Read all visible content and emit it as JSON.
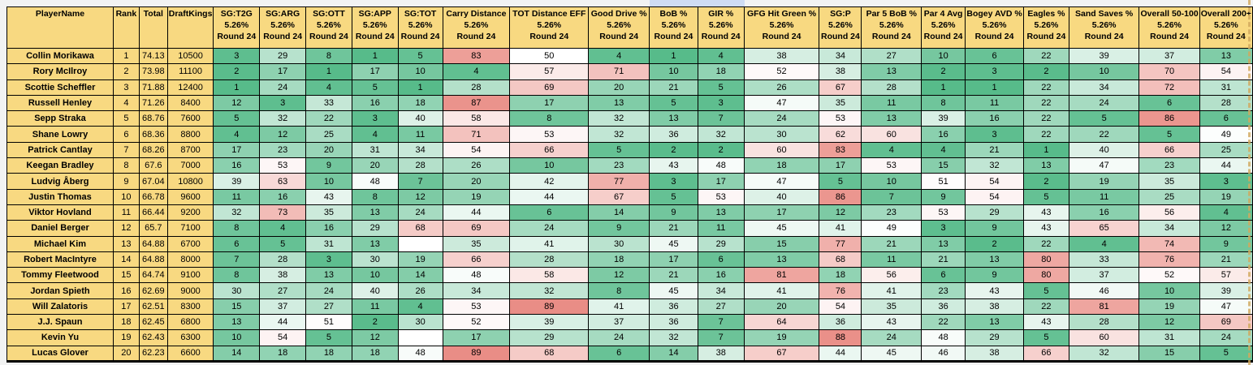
{
  "colors": {
    "header_bg": "#f8d981",
    "scale_green": "#57bb8a",
    "scale_red": "#e67c73",
    "scale_mid": "#ffffff",
    "sheet_bg": "#f2f3f3",
    "selection_strip": "#cfdcf3"
  },
  "table": {
    "columns": [
      {
        "label": "PlayerName"
      },
      {
        "label": "Rank"
      },
      {
        "label": "Total"
      },
      {
        "label": "DraftKings"
      },
      {
        "label": "SG:T2G",
        "sub1": "5.26%",
        "sub2": "Round 24"
      },
      {
        "label": "SG:ARG",
        "sub1": "5.26%",
        "sub2": "Round 24"
      },
      {
        "label": "SG:OTT",
        "sub1": "5.26%",
        "sub2": "Round 24"
      },
      {
        "label": "SG:APP",
        "sub1": "5.26%",
        "sub2": "Round 24"
      },
      {
        "label": "SG:TOT",
        "sub1": "5.26%",
        "sub2": "Round 24"
      },
      {
        "label": "Carry Distance",
        "sub1": "5.26%",
        "sub2": "Round 24"
      },
      {
        "label": "TOT Distance EFF",
        "sub1": "5.26%",
        "sub2": "Round 24"
      },
      {
        "label": "Good Drive %",
        "sub1": "5.26%",
        "sub2": "Round 24"
      },
      {
        "label": "BoB %",
        "sub1": "5.26%",
        "sub2": "Round 24"
      },
      {
        "label": "GIR %",
        "sub1": "5.26%",
        "sub2": "Round 24"
      },
      {
        "label": "GFG Hit Green %",
        "sub1": "5.26%",
        "sub2": "Round 24"
      },
      {
        "label": "SG:P",
        "sub1": "5.26%",
        "sub2": "Round 24"
      },
      {
        "label": "Par 5 BoB %",
        "sub1": "5.26%",
        "sub2": "Round 24"
      },
      {
        "label": "Par 4 Avg",
        "sub1": "5.26%",
        "sub2": "Round 24"
      },
      {
        "label": "Bogey AVD %",
        "sub1": "5.26%",
        "sub2": "Round 24"
      },
      {
        "label": "Eagles %",
        "sub1": "5.26%",
        "sub2": "Round 24"
      },
      {
        "label": "Sand Saves %",
        "sub1": "5.26%",
        "sub2": "Round 24"
      },
      {
        "label": "Overall 50-100",
        "sub1": "5.26%",
        "sub2": "Round 24"
      },
      {
        "label": "Overall 200+",
        "sub1": "5.26%",
        "sub2": "Round 24"
      }
    ],
    "players": [
      {
        "name": "Collin Morikawa",
        "rank": "1",
        "total": "74.13",
        "draftkings": "10500",
        "stats": [
          3,
          29,
          8,
          1,
          5,
          83,
          50,
          4,
          1,
          4,
          38,
          34,
          27,
          10,
          6,
          22,
          39,
          37,
          13
        ]
      },
      {
        "name": "Rory McIlroy",
        "rank": "2",
        "total": "73.98",
        "draftkings": "11100",
        "stats": [
          2,
          17,
          1,
          17,
          10,
          4,
          57,
          71,
          10,
          18,
          52,
          38,
          13,
          2,
          3,
          2,
          10,
          70,
          54
        ]
      },
      {
        "name": "Scottie Scheffler",
        "rank": "3",
        "total": "71.88",
        "draftkings": "12400",
        "stats": [
          1,
          24,
          4,
          5,
          1,
          28,
          69,
          20,
          21,
          5,
          26,
          67,
          28,
          1,
          1,
          22,
          34,
          72,
          31
        ]
      },
      {
        "name": "Russell Henley",
        "rank": "4",
        "total": "71.26",
        "draftkings": "8400",
        "stats": [
          12,
          3,
          33,
          16,
          18,
          87,
          17,
          13,
          5,
          3,
          47,
          35,
          11,
          8,
          11,
          22,
          24,
          6,
          28
        ]
      },
      {
        "name": "Sepp Straka",
        "rank": "5",
        "total": "68.76",
        "draftkings": "7600",
        "stats": [
          5,
          32,
          22,
          3,
          40,
          58,
          8,
          32,
          13,
          7,
          24,
          53,
          13,
          39,
          16,
          22,
          5,
          86,
          6
        ]
      },
      {
        "name": "Shane Lowry",
        "rank": "6",
        "total": "68.36",
        "draftkings": "8800",
        "stats": [
          4,
          12,
          25,
          4,
          11,
          71,
          53,
          32,
          36,
          32,
          30,
          62,
          60,
          16,
          3,
          22,
          22,
          5,
          49
        ]
      },
      {
        "name": "Patrick Cantlay",
        "rank": "7",
        "total": "68.26",
        "draftkings": "8700",
        "stats": [
          17,
          23,
          20,
          31,
          34,
          54,
          66,
          5,
          2,
          2,
          60,
          83,
          4,
          4,
          21,
          1,
          40,
          66,
          25
        ]
      },
      {
        "name": "Keegan Bradley",
        "rank": "8",
        "total": "67.6",
        "draftkings": "7000",
        "stats": [
          16,
          53,
          9,
          20,
          28,
          26,
          10,
          23,
          43,
          48,
          18,
          17,
          53,
          15,
          32,
          13,
          47,
          23,
          44
        ]
      },
      {
        "name": "Ludvig Åberg",
        "rank": "9",
        "total": "67.04",
        "draftkings": "10800",
        "stats": [
          39,
          63,
          10,
          48,
          7,
          20,
          42,
          77,
          3,
          17,
          47,
          5,
          10,
          51,
          54,
          2,
          19,
          35,
          3
        ]
      },
      {
        "name": "Justin Thomas",
        "rank": "10",
        "total": "66.78",
        "draftkings": "9600",
        "stats": [
          11,
          16,
          43,
          8,
          12,
          19,
          44,
          67,
          5,
          53,
          40,
          86,
          7,
          9,
          54,
          5,
          11,
          25,
          19
        ]
      },
      {
        "name": "Viktor Hovland",
        "rank": "11",
        "total": "66.44",
        "draftkings": "9200",
        "stats": [
          32,
          73,
          35,
          13,
          24,
          44,
          6,
          14,
          9,
          13,
          17,
          12,
          23,
          53,
          29,
          43,
          16,
          56,
          4
        ]
      },
      {
        "name": "Daniel Berger",
        "rank": "12",
        "total": "65.7",
        "draftkings": "7100",
        "stats": [
          8,
          4,
          16,
          29,
          68,
          69,
          24,
          9,
          21,
          11,
          45,
          41,
          49,
          3,
          9,
          43,
          65,
          34,
          12
        ]
      },
      {
        "name": "Michael Kim",
        "rank": "13",
        "total": "64.88",
        "draftkings": "6700",
        "stats": [
          6,
          5,
          31,
          13,
          null,
          35,
          41,
          30,
          45,
          29,
          15,
          77,
          21,
          13,
          2,
          22,
          4,
          74,
          9
        ]
      },
      {
        "name": "Robert MacIntyre",
        "rank": "14",
        "total": "64.88",
        "draftkings": "8000",
        "stats": [
          7,
          28,
          3,
          30,
          19,
          66,
          28,
          18,
          17,
          6,
          13,
          68,
          11,
          21,
          13,
          80,
          33,
          76,
          21
        ]
      },
      {
        "name": "Tommy Fleetwood",
        "rank": "15",
        "total": "64.74",
        "draftkings": "9100",
        "stats": [
          8,
          38,
          13,
          10,
          14,
          48,
          58,
          12,
          21,
          16,
          81,
          18,
          56,
          6,
          9,
          80,
          37,
          52,
          57
        ]
      },
      {
        "name": "Jordan Spieth",
        "rank": "16",
        "total": "62.69",
        "draftkings": "9000",
        "stats": [
          30,
          27,
          24,
          40,
          26,
          34,
          32,
          8,
          45,
          34,
          41,
          76,
          41,
          23,
          43,
          5,
          46,
          10,
          39
        ]
      },
      {
        "name": "Will Zalatoris",
        "rank": "17",
        "total": "62.51",
        "draftkings": "8300",
        "stats": [
          15,
          37,
          27,
          11,
          4,
          53,
          89,
          41,
          36,
          27,
          20,
          54,
          35,
          36,
          38,
          22,
          81,
          19,
          47
        ]
      },
      {
        "name": "J.J. Spaun",
        "rank": "18",
        "total": "62.45",
        "draftkings": "6800",
        "stats": [
          13,
          44,
          51,
          2,
          30,
          52,
          39,
          37,
          36,
          7,
          64,
          36,
          43,
          22,
          13,
          43,
          28,
          12,
          69
        ]
      },
      {
        "name": "Kevin Yu",
        "rank": "19",
        "total": "62.43",
        "draftkings": "6300",
        "stats": [
          10,
          54,
          5,
          12,
          null,
          17,
          29,
          24,
          32,
          7,
          19,
          88,
          24,
          48,
          29,
          5,
          60,
          31,
          24
        ]
      },
      {
        "name": "Lucas Glover",
        "rank": "20",
        "total": "62.23",
        "draftkings": "6600",
        "stats": [
          14,
          18,
          18,
          18,
          48,
          89,
          68,
          6,
          14,
          38,
          67,
          44,
          45,
          46,
          38,
          66,
          32,
          15,
          5
        ]
      }
    ]
  }
}
